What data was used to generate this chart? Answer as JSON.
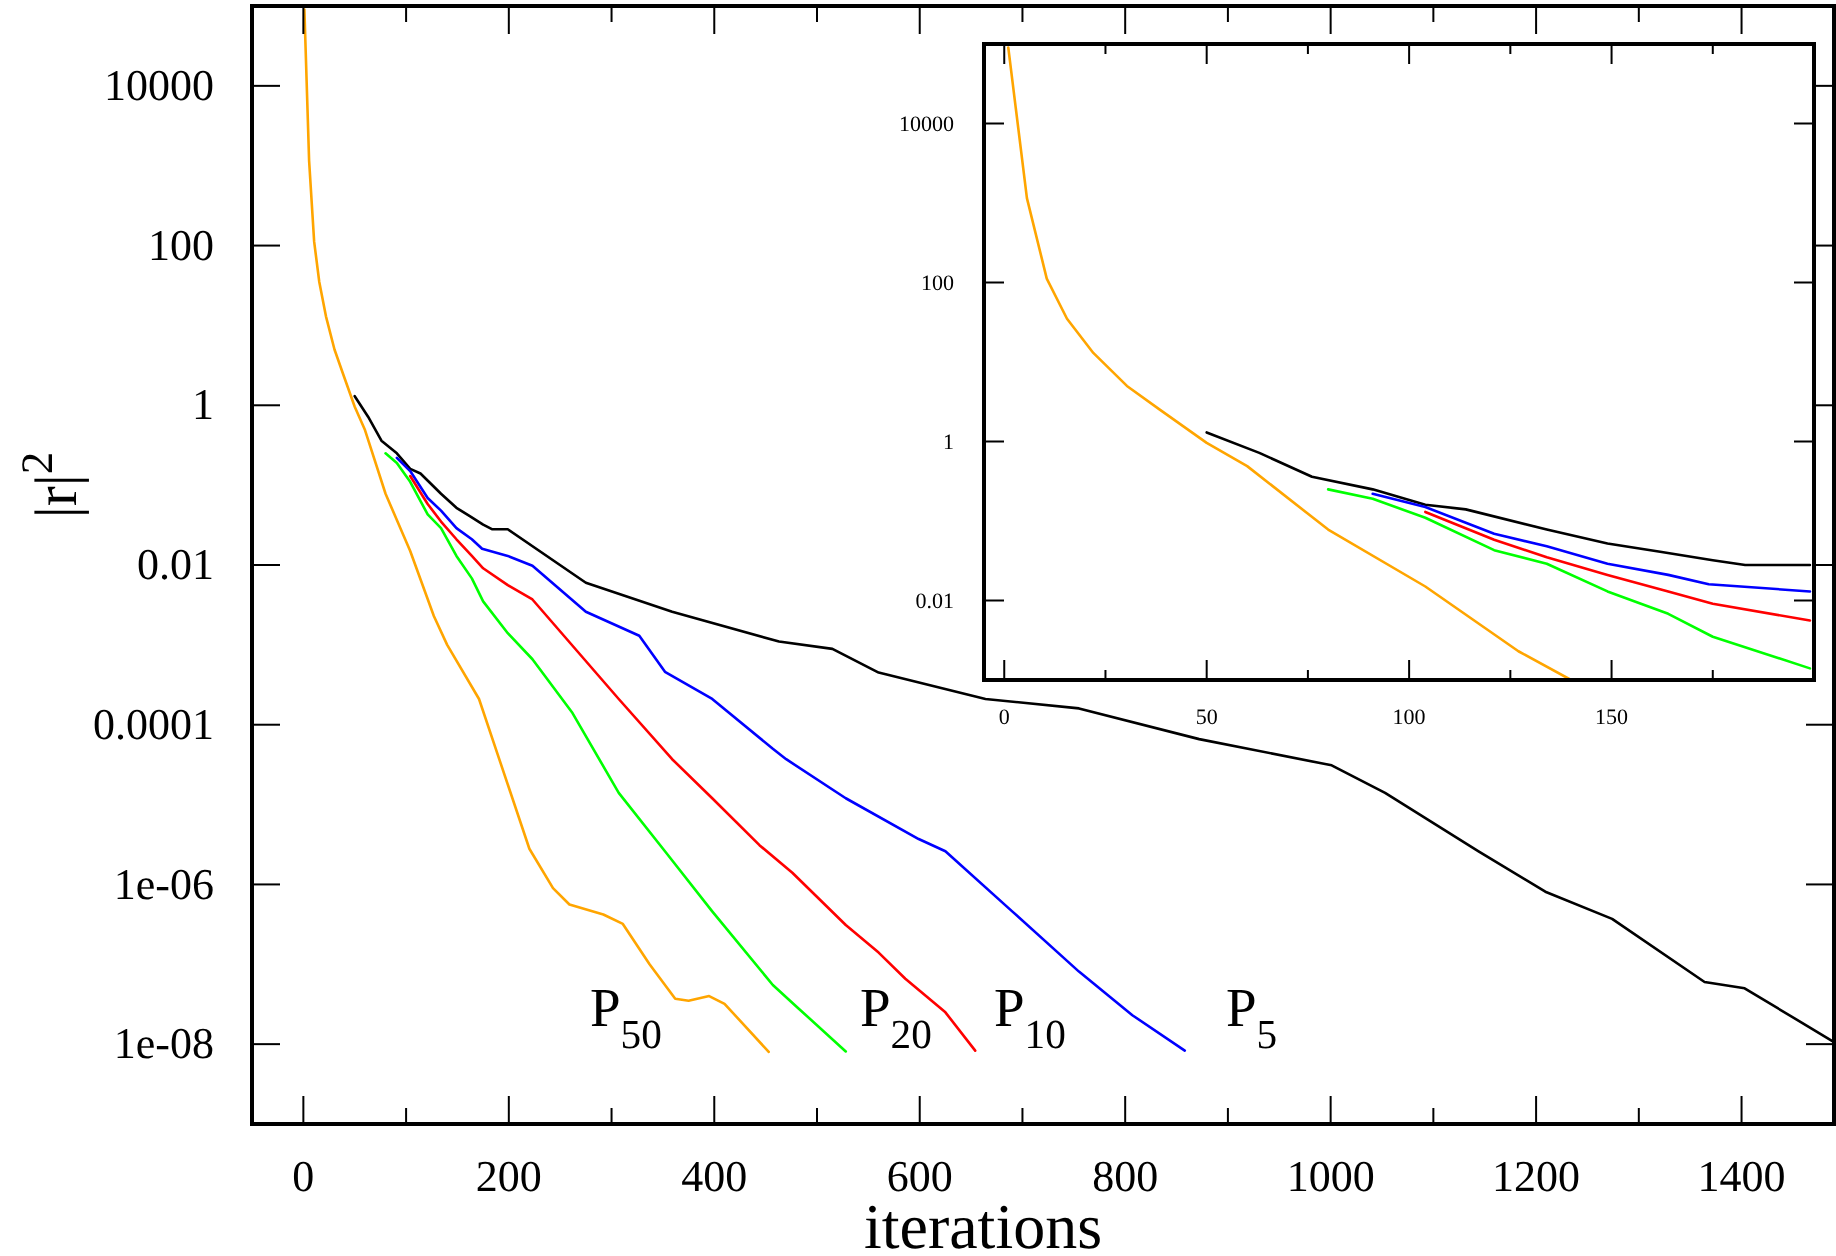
{
  "chart_data": [
    {
      "type": "line",
      "xlabel": "iterations",
      "ylabel": "|r|$^{2}$",
      "log": "y",
      "xlim": [
        -50,
        1490
      ],
      "ylim": [
        1e-09,
        100000
      ],
      "xticks": [
        0,
        {
          "value": 100,
          "label": null
        },
        200,
        {
          "value": 300,
          "label": null
        },
        400,
        {
          "value": 500,
          "label": null
        },
        600,
        {
          "value": 700,
          "label": null
        },
        800,
        {
          "value": 900,
          "label": null
        },
        1000,
        {
          "value": 1100,
          "label": null
        },
        1200,
        {
          "value": 1300,
          "label": null
        },
        1400
      ],
      "yticks": [
        {
          "value": 10000,
          "label": "10000"
        },
        {
          "value": 100,
          "label": "100"
        },
        {
          "value": 1,
          "label": "1"
        },
        {
          "value": 0.01,
          "label": "0.01"
        },
        {
          "value": 0.0001,
          "label": "0.0001"
        },
        {
          "value": 1e-06,
          "label": "1e-06"
        },
        {
          "value": 1e-08,
          "label": "1e-08"
        }
      ],
      "series": [
        {
          "color": "#000000",
          "x": [
            50,
            63,
            76,
            91,
            104,
            114,
            134,
            149,
            162,
            175,
            184,
            199,
            275,
            359,
            463,
            515,
            560,
            664,
            755,
            872,
            1001,
            1053,
            1144,
            1209,
            1274,
            1364,
            1403,
            1488
          ],
          "values": [
            1.3,
            0.72,
            0.36,
            0.25,
            0.16,
            0.14,
            0.078,
            0.052,
            0.041,
            0.032,
            0.028,
            0.028,
            0.006,
            0.0026,
            0.0011,
            0.00089,
            0.00045,
            0.00021,
            0.00016,
            6.6e-05,
            3.1e-05,
            1.4e-05,
            2.6e-06,
            8.1e-07,
            3.7e-07,
            6e-08,
            5e-08,
            1.1e-08
          ]
        },
        {
          "color": "#0000ff",
          "x": [
            91,
            104,
            121,
            134,
            149,
            164,
            174,
            199,
            223,
            275,
            327,
            352,
            398,
            457,
            470,
            528,
            599,
            625,
            690,
            755,
            807,
            858
          ],
          "values": [
            0.22,
            0.15,
            0.069,
            0.048,
            0.029,
            0.021,
            0.016,
            0.013,
            0.0098,
            0.0026,
            0.0013,
            0.00046,
            0.00021,
            5e-05,
            3.7e-05,
            1.2e-05,
            3.7e-06,
            2.6e-06,
            4.6e-07,
            8.1e-08,
            2.3e-08,
            8.3e-09
          ]
        },
        {
          "color": "#ff0000",
          "x": [
            104,
            121,
            134,
            149,
            164,
            175,
            199,
            223,
            307,
            359,
            398,
            444,
            476,
            528,
            560,
            586,
            625,
            654
          ],
          "values": [
            0.13,
            0.058,
            0.035,
            0.021,
            0.013,
            0.0091,
            0.0056,
            0.0037,
            0.00021,
            3.7e-05,
            1.2e-05,
            3.1e-06,
            1.4e-06,
            3.1e-07,
            1.4e-07,
            6.6e-08,
            2.5e-08,
            8.3e-09
          ]
        },
        {
          "color": "#00ff00",
          "x": [
            80,
            91,
            104,
            121,
            134,
            149,
            164,
            175,
            199,
            223,
            262,
            307,
            352,
            398,
            457,
            482,
            528
          ],
          "values": [
            0.25,
            0.19,
            0.11,
            0.043,
            0.029,
            0.013,
            0.0068,
            0.0035,
            0.0014,
            0.00066,
            0.00014,
            1.4e-05,
            2.6e-06,
            4.6e-07,
            5.5e-08,
            2.8e-08,
            8.1e-09
          ]
        },
        {
          "color": "#ffa500",
          "x": [
            1,
            5.6,
            10.5,
            15.5,
            22,
            30.3,
            38.5,
            50,
            60,
            80,
            104,
            127,
            140,
            171,
            220,
            243,
            259,
            292,
            311,
            337,
            362,
            375,
            395,
            410,
            453
          ],
          "values": [
            90000,
            1150,
            112,
            35,
            13,
            5,
            2.5,
            0.96,
            0.49,
            0.078,
            0.015,
            0.0023,
            0.001,
            0.00021,
            2.8e-06,
            9e-07,
            5.6e-07,
            4.2e-07,
            3.2e-07,
            1e-07,
            3.7e-08,
            3.5e-08,
            4e-08,
            3.2e-08,
            8e-09
          ]
        }
      ],
      "annotations": [
        "P$_{50}$",
        "P$_{20}$",
        "P$_{10}$",
        "P$_{5}$"
      ]
    },
    {
      "type": "line",
      "log": "y",
      "xlim": [
        -5,
        200
      ],
      "ylim": [
        0.001,
        100000
      ],
      "xticks": [
        0,
        {
          "value": 25,
          "label": null
        },
        50,
        {
          "value": 75,
          "label": null
        },
        100,
        {
          "value": 125,
          "label": null
        },
        150,
        {
          "value": 175,
          "label": null
        }
      ],
      "yticks": [
        {
          "value": 10000,
          "label": "10000"
        },
        {
          "value": 100,
          "label": "100"
        },
        {
          "value": 1,
          "label": "1"
        },
        {
          "value": 0.01,
          "label": "0.01"
        }
      ],
      "series": [
        {
          "color": "#000000",
          "x": [
            50,
            63,
            76,
            91,
            104,
            114,
            134,
            149,
            162,
            175,
            183,
            199
          ],
          "values": [
            1.3,
            0.72,
            0.36,
            0.25,
            0.16,
            0.14,
            0.078,
            0.052,
            0.041,
            0.032,
            0.028,
            0.028
          ]
        },
        {
          "color": "#0000ff",
          "x": [
            91,
            104,
            121,
            134,
            149,
            164,
            174,
            199
          ],
          "values": [
            0.22,
            0.15,
            0.069,
            0.048,
            0.029,
            0.021,
            0.016,
            0.013
          ]
        },
        {
          "color": "#ff0000",
          "x": [
            104,
            121,
            134,
            149,
            164,
            175,
            199
          ],
          "values": [
            0.13,
            0.058,
            0.035,
            0.021,
            0.013,
            0.0091,
            0.0056
          ]
        },
        {
          "color": "#00ff00",
          "x": [
            80,
            91,
            104,
            121,
            134,
            149,
            164,
            175,
            199
          ],
          "values": [
            0.25,
            0.19,
            0.11,
            0.043,
            0.029,
            0.013,
            0.0068,
            0.0035,
            0.0014
          ]
        },
        {
          "color": "#ffa500",
          "x": [
            1,
            5.6,
            10.5,
            15.5,
            22,
            30.3,
            38.5,
            50,
            60,
            80,
            104,
            127,
            140
          ],
          "values": [
            90000,
            1150,
            112,
            35,
            13,
            5,
            2.5,
            0.96,
            0.49,
            0.078,
            0.015,
            0.0023,
            0.001
          ]
        }
      ]
    }
  ]
}
